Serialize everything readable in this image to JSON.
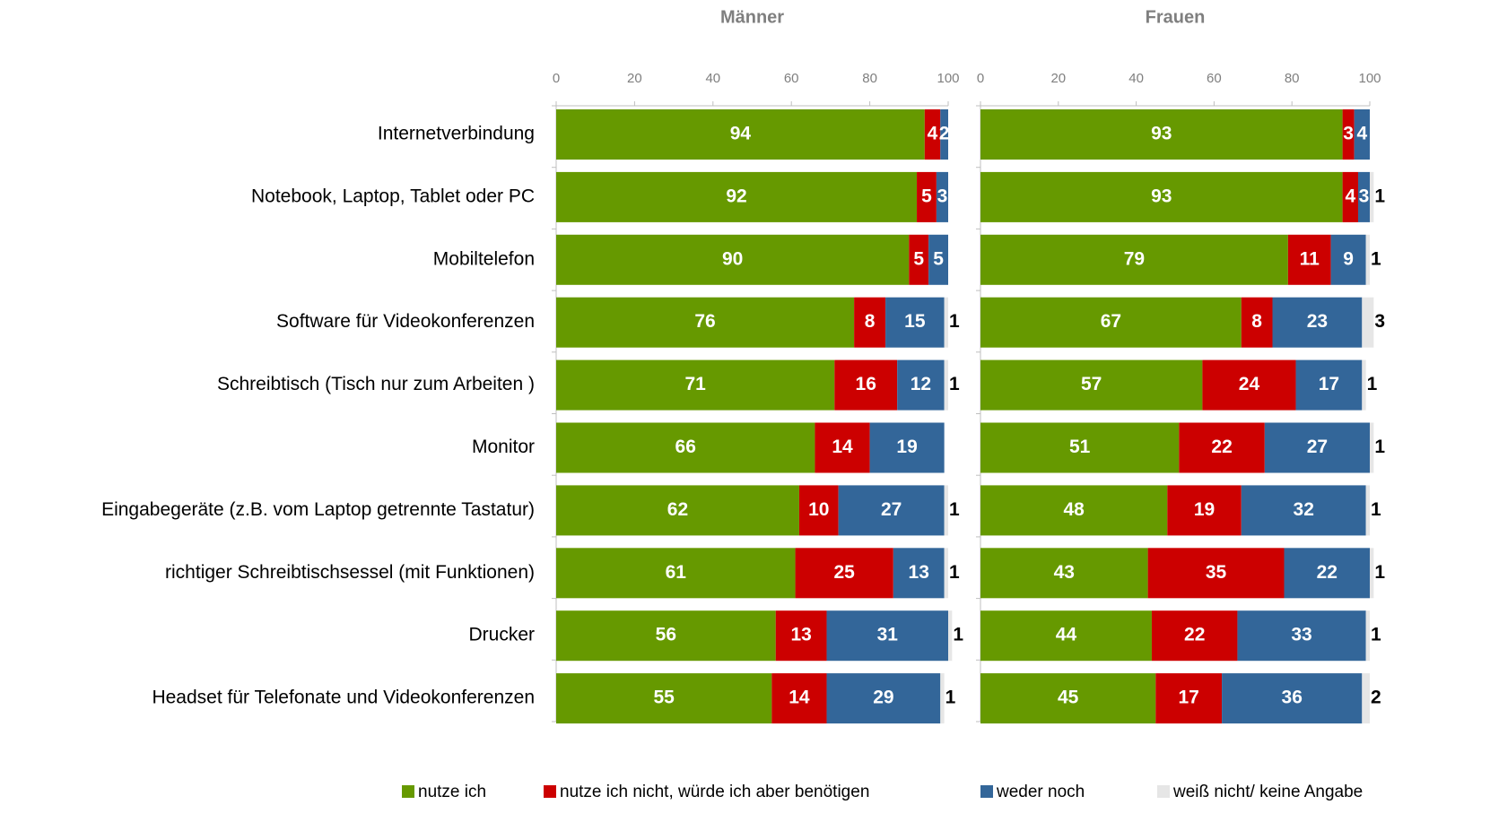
{
  "chart_data": {
    "type": "bar",
    "stacked": true,
    "orientation": "horizontal",
    "categories": [
      "Internetverbindung",
      "Notebook, Laptop, Tablet oder PC",
      "Mobiltelefon",
      "Software für Videokonferenzen",
      "Schreibtisch (Tisch nur zum Arbeiten )",
      "Monitor",
      "Eingabegeräte (z.B. vom Laptop getrennte Tastatur)",
      "richtiger Schreibtischsessel (mit Funktionen)",
      "Drucker",
      "Headset für Telefonate und Videokonferenzen"
    ],
    "series": [
      {
        "name": "nutze ich",
        "color": "#669900"
      },
      {
        "name": "nutze ich nicht, würde ich aber benötigen",
        "color": "#cc0000"
      },
      {
        "name": "weder noch",
        "color": "#336699"
      },
      {
        "name": "weiß nicht/ keine Angabe",
        "color": "#e6e6e6"
      }
    ],
    "xlim": [
      0,
      100
    ],
    "xticks": [
      0,
      20,
      40,
      60,
      80,
      100
    ],
    "panels": [
      {
        "title": "Männer",
        "values": [
          [
            94,
            92,
            90,
            76,
            71,
            66,
            62,
            61,
            56,
            55
          ],
          [
            4,
            5,
            5,
            8,
            16,
            14,
            10,
            25,
            13,
            14
          ],
          [
            2,
            3,
            5,
            15,
            12,
            19,
            27,
            13,
            31,
            29
          ],
          [
            null,
            null,
            null,
            1,
            1,
            null,
            1,
            1,
            1,
            1
          ]
        ]
      },
      {
        "title": "Frauen",
        "values": [
          [
            93,
            93,
            79,
            67,
            57,
            51,
            48,
            43,
            44,
            45
          ],
          [
            3,
            4,
            11,
            8,
            24,
            22,
            19,
            35,
            22,
            17
          ],
          [
            4,
            3,
            9,
            23,
            17,
            27,
            32,
            22,
            33,
            36
          ],
          [
            null,
            1,
            1,
            3,
            1,
            1,
            1,
            1,
            1,
            2
          ]
        ]
      }
    ]
  }
}
